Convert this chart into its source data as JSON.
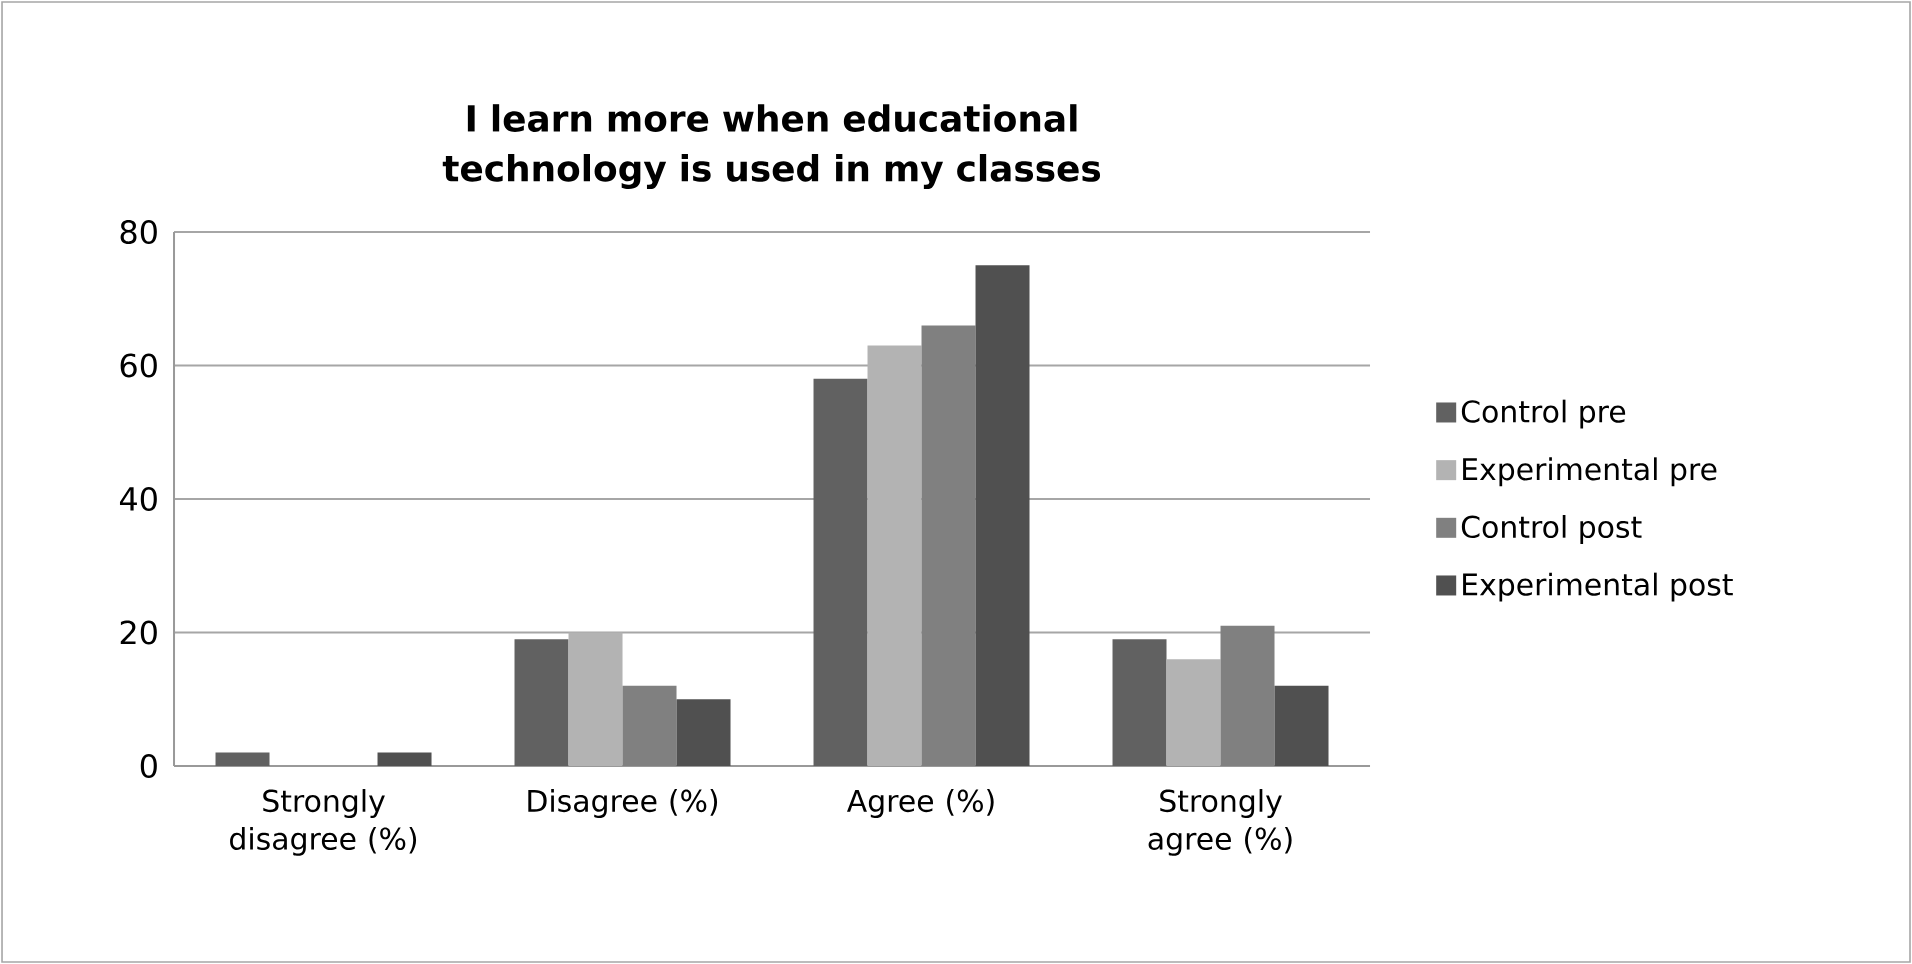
{
  "chart_data": {
    "type": "bar",
    "title": "I learn more when educational technology is used in my classes",
    "categories": [
      "Strongly disagree (%)",
      "Disagree (%)",
      "Agree (%)",
      "Strongly agree (%)"
    ],
    "series": [
      {
        "name": "Control pre",
        "color": "#616161",
        "values": [
          2,
          19,
          58,
          19
        ]
      },
      {
        "name": "Experimental pre",
        "color": "#b3b3b3",
        "values": [
          0,
          20,
          63,
          16
        ]
      },
      {
        "name": "Control post",
        "color": "#808080",
        "values": [
          0,
          12,
          66,
          21
        ]
      },
      {
        "name": "Experimental post",
        "color": "#505050",
        "values": [
          2,
          10,
          75,
          12
        ]
      }
    ],
    "ylim": [
      0,
      80
    ],
    "yticks": [
      0,
      20,
      40,
      60,
      80
    ],
    "grid": "y",
    "legend": "right"
  }
}
